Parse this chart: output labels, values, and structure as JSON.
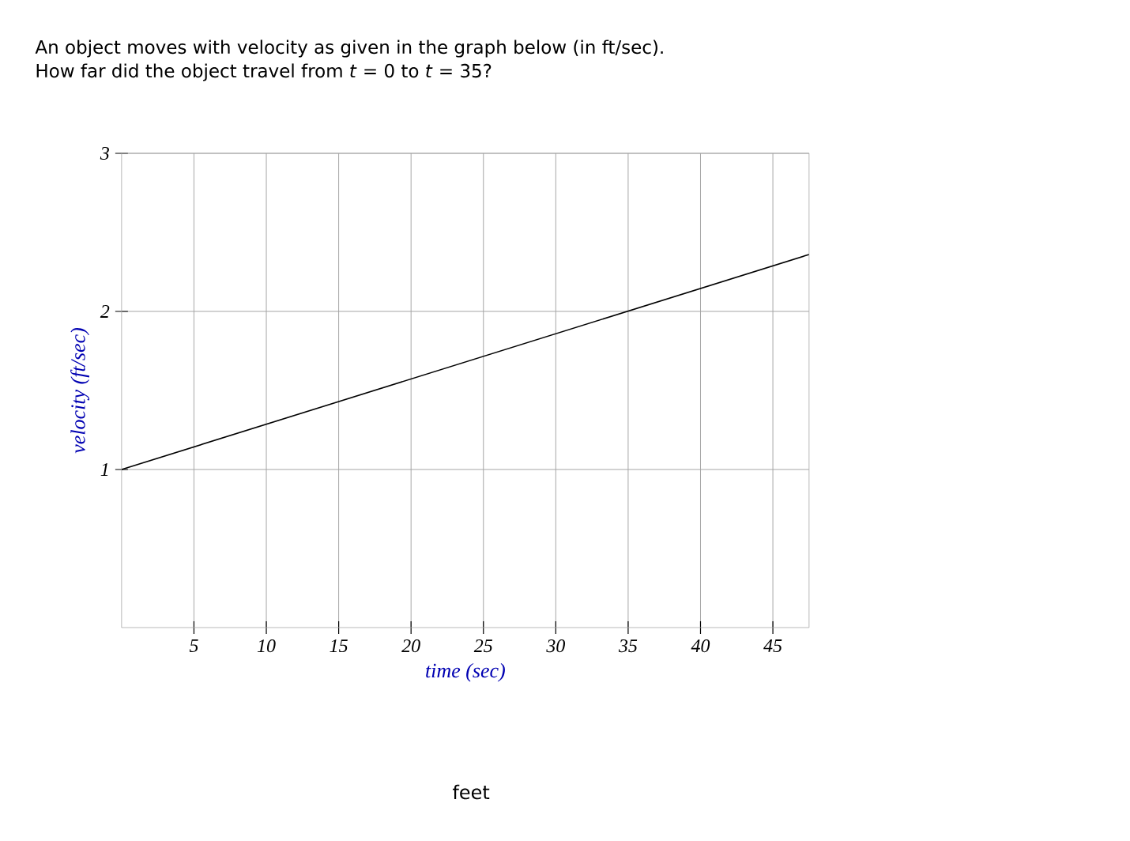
{
  "chart_data": {
    "type": "line",
    "title": "An object moves with velocity as given in the graph below (in ft/sec).",
    "subtitle": "How far did the object travel from *t* = 0 to *t* = 35?",
    "xlabel": "time (sec)",
    "ylabel": "velocity (ft/sec)",
    "series": [
      {
        "color": "#000000",
        "x": [
          0,
          47.5
        ],
        "values": [
          1,
          2.36
        ]
      }
    ],
    "xlim": [
      0,
      47.5
    ],
    "ylim": [
      0,
      3
    ],
    "xticks": [
      5,
      10,
      15,
      20,
      25,
      30,
      35,
      40,
      45
    ],
    "yticks": [
      1,
      2,
      3
    ],
    "grid": true,
    "marker": "none",
    "line_style": "solid",
    "annotations": [
      "feet"
    ]
  }
}
